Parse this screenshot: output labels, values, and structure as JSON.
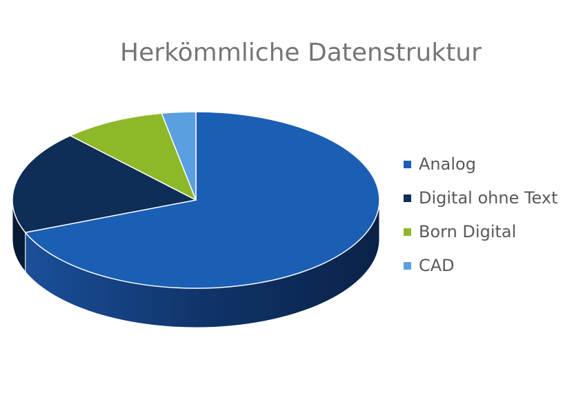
{
  "chart_data": {
    "type": "pie",
    "title": "Herkömmliche Datenstruktur",
    "categories": [
      "Analog",
      "Digital ohne Text",
      "Born Digital",
      "CAD"
    ],
    "values": [
      69,
      19,
      9,
      3
    ],
    "colors": [
      "#1b5fb5",
      "#0e2d57",
      "#8cb82a",
      "#5a9fe0"
    ],
    "legend": "right"
  }
}
